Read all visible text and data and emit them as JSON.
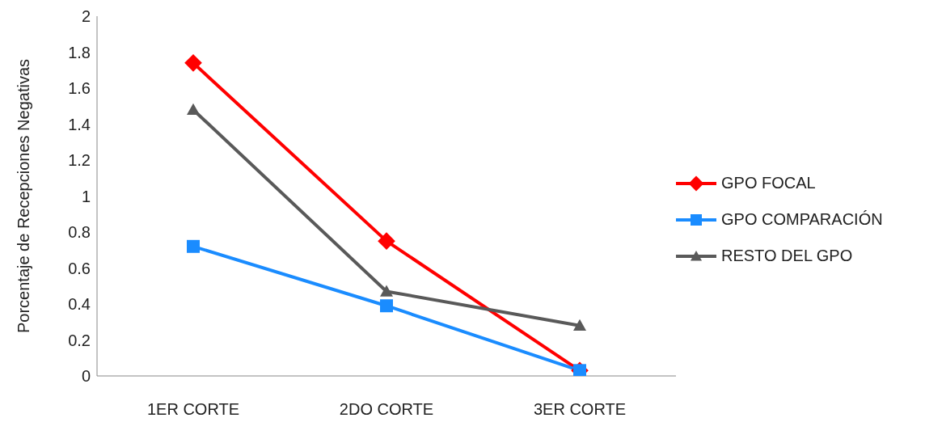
{
  "chart_data": {
    "type": "line",
    "ylabel": "Porcentaje de Recepciones Negativas",
    "categories": [
      "1ER CORTE",
      "2DO CORTE",
      "3ER CORTE"
    ],
    "series": [
      {
        "name": "GPO FOCAL",
        "color": "#ff0000",
        "values": [
          1.74,
          0.75,
          0.03
        ],
        "marker": "diamond"
      },
      {
        "name": "GPO COMPARACIÓN",
        "color": "#1a8cff",
        "values": [
          0.72,
          0.39,
          0.03
        ],
        "marker": "square"
      },
      {
        "name": "RESTO DEL GPO",
        "color": "#595959",
        "values": [
          1.48,
          0.47,
          0.28
        ],
        "marker": "triangle"
      }
    ],
    "ylim": [
      0,
      2
    ],
    "yticks": [
      0,
      0.2,
      0.4,
      0.6,
      0.8,
      1,
      1.2,
      1.4,
      1.6,
      1.8,
      2
    ],
    "grid": false,
    "legend": "right",
    "line_style": "solid"
  }
}
